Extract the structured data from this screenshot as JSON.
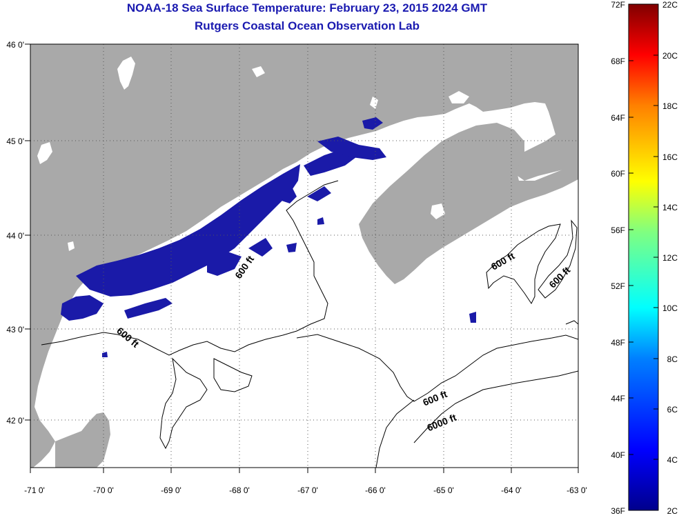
{
  "title": "NOAA-18 Sea Surface Temperature:  February 23, 2015 2024 GMT",
  "subtitle": "Rutgers Coastal Ocean Observation Lab",
  "map": {
    "lon_labels": [
      "-71 0'",
      "-70 0'",
      "-69 0'",
      "-68 0'",
      "-67 0'",
      "-66 0'",
      "-65 0'",
      "-64 0'",
      "-63 0'"
    ],
    "lat_labels": [
      "46 0'",
      "45 0'",
      "44 0'",
      "43 0'",
      "42 0'"
    ],
    "contour_labels": [
      "600 ft",
      "600 ft",
      "600 ft",
      "600 ft",
      "600 ft",
      "6000 ft"
    ],
    "land_color": "#a9a9a9",
    "ocean_color": "#ffffff",
    "sst_color": "#1a1aa8"
  },
  "colorbar": {
    "fahrenheit_labels": [
      "72F",
      "68F",
      "64F",
      "60F",
      "56F",
      "52F",
      "48F",
      "44F",
      "40F",
      "36F"
    ],
    "celsius_labels": [
      "22C",
      "20C",
      "18C",
      "16C",
      "14C",
      "12C",
      "10C",
      "8C",
      "6C",
      "4C",
      "2C"
    ],
    "fahrenheit_range": [
      36,
      72
    ],
    "celsius_range": [
      2,
      22
    ]
  }
}
